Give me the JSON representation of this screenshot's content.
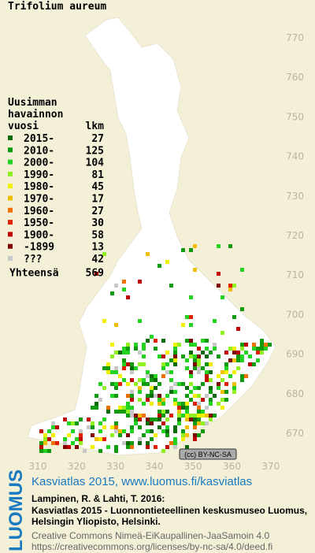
{
  "title": "Trifolium aureum",
  "legend": {
    "heading": [
      "Uusimman",
      "havainnon"
    ],
    "columns": {
      "label": "vuosi",
      "count": "lkm"
    },
    "rows": [
      {
        "label": "2015-",
        "count": 27,
        "color": "#0a6b0a"
      },
      {
        "label": "2010-",
        "count": 125,
        "color": "#109a10"
      },
      {
        "label": "2000-",
        "count": 104,
        "color": "#22d322"
      },
      {
        "label": "1990-",
        "count": 81,
        "color": "#90f020"
      },
      {
        "label": "1980-",
        "count": 45,
        "color": "#f0f000"
      },
      {
        "label": "1970-",
        "count": 17,
        "color": "#f0c000"
      },
      {
        "label": "1960-",
        "count": 27,
        "color": "#f07000"
      },
      {
        "label": "1950-",
        "count": 30,
        "color": "#e02000"
      },
      {
        "label": "1900-",
        "count": 58,
        "color": "#c00000"
      },
      {
        "label": "-1899",
        "count": 13,
        "color": "#800000"
      },
      {
        "label": "???",
        "count": 42,
        "color": "#c8c8c8"
      }
    ],
    "total": {
      "label": "Yhteensä",
      "count": 569
    }
  },
  "map": {
    "y_labels": [
      770,
      760,
      750,
      740,
      730,
      720,
      710,
      700,
      690,
      680,
      670
    ],
    "x_labels": [
      310,
      320,
      330,
      340,
      350,
      360,
      370
    ]
  },
  "license_badge": "(cc) BY-NC-SA",
  "footer": {
    "logo": "LUOMUS",
    "link": "Kasviatlas 2015, www.luomus.fi/kasviatlas",
    "citation": [
      "Lampinen, R. & Lahti, T. 2016:",
      "Kasviatlas 2015 - Luonnontieteellinen keskusmuseo Luomus,",
      "Helsingin Yliopisto, Helsinki."
    ],
    "license": [
      "Creative Commons Nimeä-EiKaupallinen-JaaSamoin 4.0",
      "https://creativecommons.org/licenses/by-nc-sa/4.0/deed.fi"
    ]
  }
}
